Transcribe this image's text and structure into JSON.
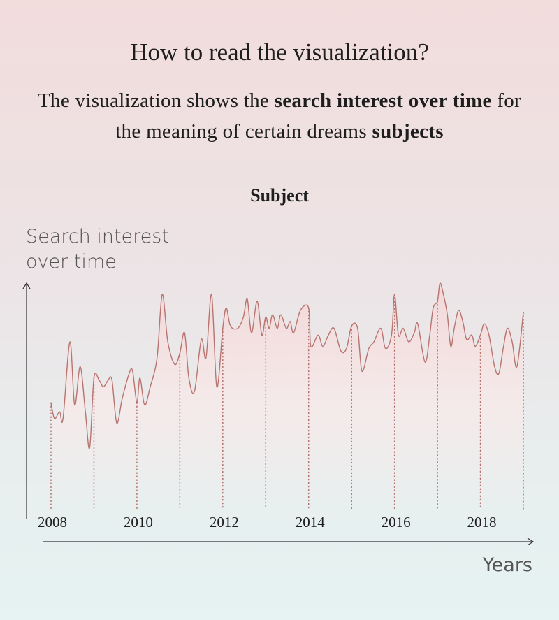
{
  "title": "How to read the visualization?",
  "description": [
    {
      "text": "The visualization shows the ",
      "bold": false
    },
    {
      "text": "search interest over time",
      "bold": true
    },
    {
      "text": " for the meaning of certain dreams ",
      "bold": false
    },
    {
      "text": "subjects",
      "bold": true
    }
  ],
  "chart_data": {
    "type": "line",
    "title": "Subject",
    "y_label": "Search interest over time",
    "x_label": "Years",
    "color": "#b87470",
    "xlim": [
      2008,
      2019
    ],
    "xticks": [
      2008,
      2010,
      2012,
      2014,
      2016,
      2018
    ],
    "ylim": [
      0,
      100
    ],
    "x": [
      2008,
      2008.08,
      2008.2,
      2008.28,
      2008.44,
      2008.55,
      2008.68,
      2008.8,
      2008.9,
      2009,
      2009.12,
      2009.22,
      2009.33,
      2009.42,
      2009.53,
      2009.66,
      2009.82,
      2009.9,
      2010,
      2010.07,
      2010.18,
      2010.31,
      2010.47,
      2010.59,
      2010.72,
      2010.88,
      2011,
      2011.11,
      2011.21,
      2011.34,
      2011.5,
      2011.61,
      2011.74,
      2011.86,
      2012,
      2012.08,
      2012.18,
      2012.35,
      2012.48,
      2012.57,
      2012.67,
      2012.8,
      2012.91,
      2013,
      2013.08,
      2013.16,
      2013.27,
      2013.35,
      2013.48,
      2013.57,
      2013.65,
      2013.81,
      2014,
      2014.05,
      2014.22,
      2014.33,
      2014.46,
      2014.59,
      2014.75,
      2014.88,
      2015,
      2015.14,
      2015.24,
      2015.4,
      2015.52,
      2015.68,
      2015.79,
      2015.93,
      2016,
      2016.09,
      2016.2,
      2016.33,
      2016.46,
      2016.54,
      2016.71,
      2016.82,
      2016.9,
      2017,
      2017.06,
      2017.15,
      2017.23,
      2017.31,
      2017.39,
      2017.49,
      2017.59,
      2017.68,
      2017.8,
      2017.88,
      2018,
      2018.09,
      2018.2,
      2018.33,
      2018.43,
      2018.53,
      2018.63,
      2018.74,
      2018.85,
      2019
    ],
    "values": [
      47,
      40,
      43,
      40,
      74,
      46,
      63,
      43,
      27,
      58,
      57,
      54,
      57,
      57,
      38,
      49,
      60,
      61,
      47,
      58,
      46,
      54,
      67,
      95,
      74,
      64,
      69,
      78,
      58,
      52,
      75,
      67,
      95,
      54,
      80,
      89,
      81,
      80,
      85,
      93,
      78,
      92,
      77,
      85,
      80,
      86,
      80,
      86,
      80,
      83,
      78,
      88,
      89,
      72,
      77,
      72,
      77,
      80,
      70,
      71,
      81,
      80,
      61,
      71,
      74,
      80,
      71,
      77,
      95,
      77,
      80,
      74,
      78,
      82,
      65,
      77,
      89,
      92,
      100,
      94,
      86,
      72,
      80,
      88,
      83,
      75,
      77,
      72,
      77,
      82,
      77,
      63,
      60,
      71,
      80,
      74,
      63,
      87
    ]
  }
}
